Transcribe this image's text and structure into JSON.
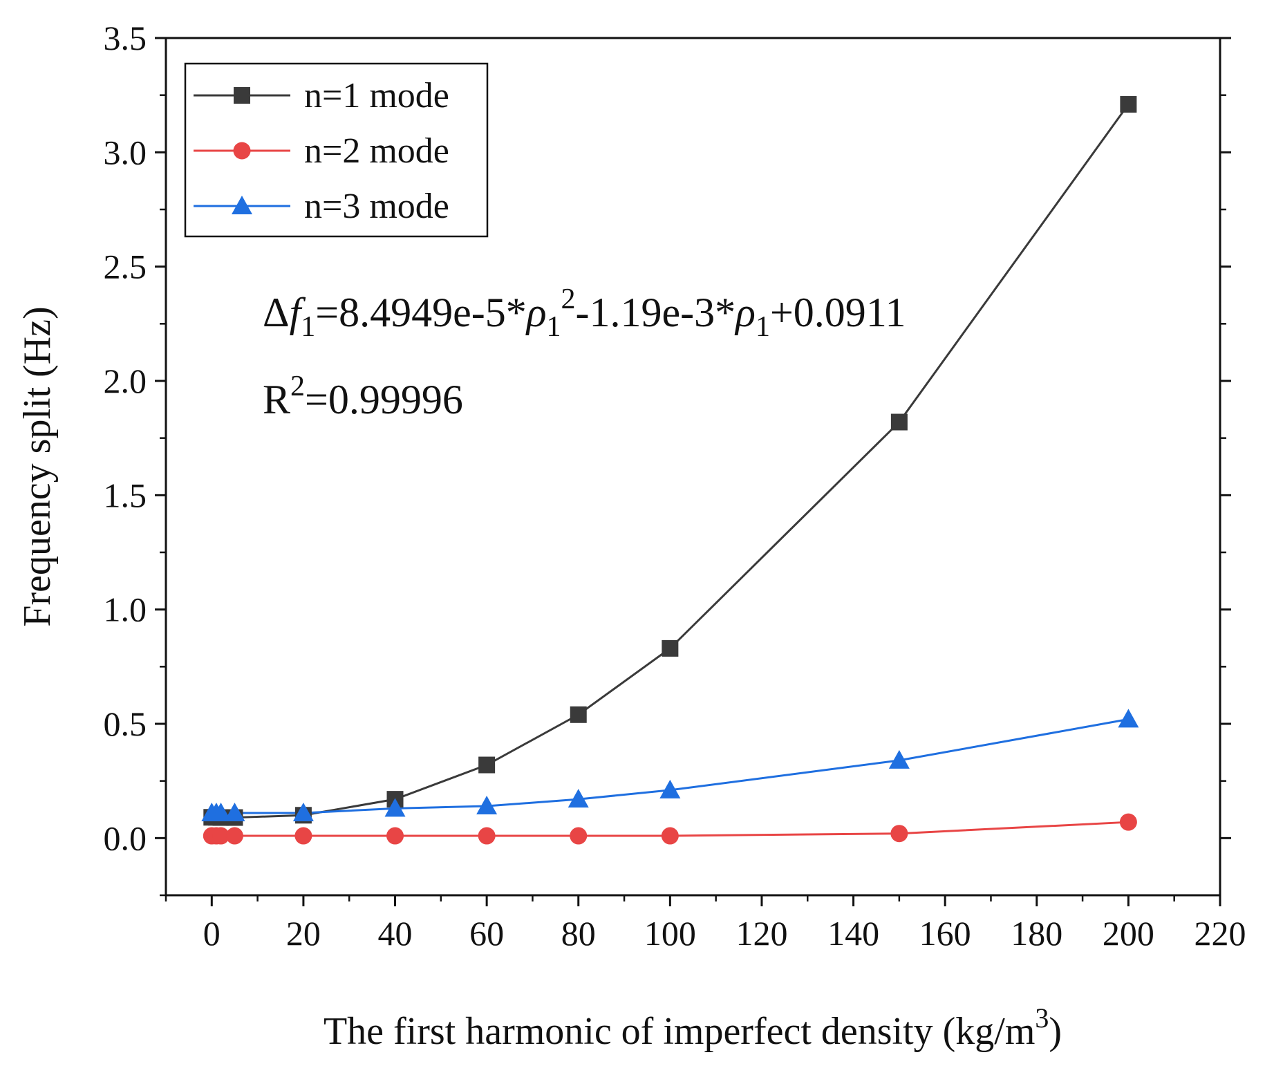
{
  "chart_data": {
    "type": "line",
    "title": "",
    "xlabel": "The first harmonic of imperfect density (kg/m",
    "xlabel_superscript": "3",
    "xlabel_suffix": ")",
    "ylabel": "Frequency split (Hz)",
    "xlim": [
      -10,
      220
    ],
    "ylim": [
      -0.25,
      3.5
    ],
    "xticks": [
      0,
      20,
      40,
      60,
      80,
      100,
      120,
      140,
      160,
      180,
      200,
      220
    ],
    "yticks": [
      0.0,
      0.5,
      1.0,
      1.5,
      2.0,
      2.5,
      3.0,
      3.5
    ],
    "xtick_labels": [
      "0",
      "20",
      "40",
      "60",
      "80",
      "100",
      "120",
      "140",
      "160",
      "180",
      "200",
      "220"
    ],
    "ytick_labels": [
      "0.0",
      "0.5",
      "1.0",
      "1.5",
      "2.0",
      "2.5",
      "3.0",
      "3.5"
    ],
    "grid": false,
    "legend_position": "top-left",
    "x": [
      0,
      1,
      2,
      5,
      20,
      40,
      60,
      80,
      100,
      150,
      200
    ],
    "series": [
      {
        "name": "n=1 mode",
        "color": "#3a3a3a",
        "marker": "square",
        "values": [
          0.091,
          0.091,
          0.09,
          0.09,
          0.1,
          0.17,
          0.32,
          0.54,
          0.83,
          1.82,
          3.21
        ]
      },
      {
        "name": "n=2 mode",
        "color": "#e84545",
        "marker": "circle",
        "values": [
          0.01,
          0.01,
          0.01,
          0.01,
          0.01,
          0.01,
          0.01,
          0.01,
          0.01,
          0.02,
          0.07
        ]
      },
      {
        "name": "n=3 mode",
        "color": "#1f6fe0",
        "marker": "triangle",
        "values": [
          0.11,
          0.11,
          0.11,
          0.11,
          0.11,
          0.13,
          0.14,
          0.17,
          0.21,
          0.34,
          0.52
        ]
      }
    ],
    "annotations": {
      "equation_prefix": "Δ",
      "equation_f": "f",
      "equation_f_sub": "1",
      "equation_part1": "=8.4949e-5*",
      "equation_rho": "ρ",
      "equation_rho_sub1": "1",
      "equation_rho_sup": "2",
      "equation_part2": "-1.19e-3*",
      "equation_rho_sub2": "1",
      "equation_part3": "+0.0911",
      "r2_text": "R",
      "r2_sup": "2",
      "r2_value": "=0.99996"
    }
  }
}
